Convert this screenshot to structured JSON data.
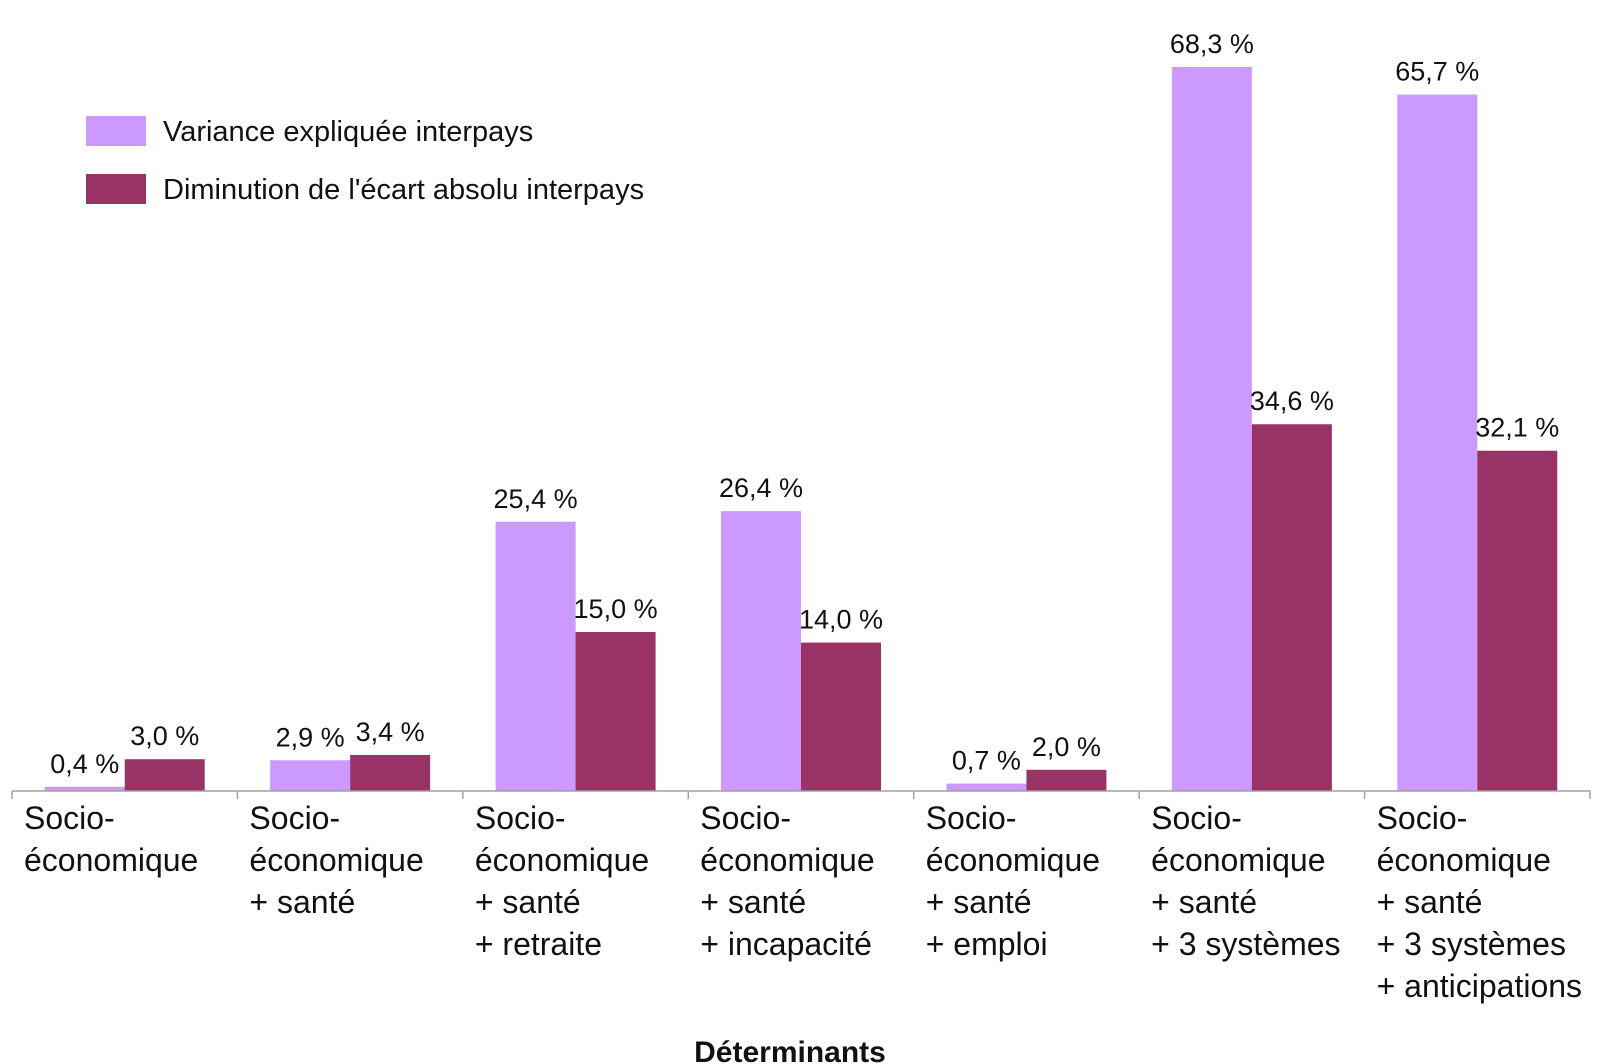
{
  "chart_data": {
    "type": "bar",
    "xlabel": "Déterminants",
    "ylabel": "",
    "ylim": [
      0,
      72
    ],
    "grid": false,
    "legend_position": "top-left",
    "categories": [
      [
        "Socio-",
        "économique"
      ],
      [
        "Socio-",
        "économique",
        "+ santé"
      ],
      [
        "Socio-",
        "économique",
        "+ santé",
        "+ retraite"
      ],
      [
        "Socio-",
        "économique",
        "+ santé",
        "+ incapacité"
      ],
      [
        "Socio-",
        "économique",
        "+ santé",
        "+ emploi"
      ],
      [
        "Socio-",
        "économique",
        "+ santé",
        "+ 3 systèmes"
      ],
      [
        "Socio-",
        "économique",
        "+ santé",
        "+ 3 systèmes",
        "+ anticipations"
      ]
    ],
    "series": [
      {
        "name": "Variance expliquée interpays",
        "color": "#cc99ff",
        "values": [
          0.4,
          2.9,
          25.4,
          26.4,
          0.7,
          68.3,
          65.7
        ],
        "labels": [
          "0,4 %",
          "2,9 %",
          "25,4 %",
          "26,4 %",
          "0,7 %",
          "68,3 %",
          "65,7 %"
        ]
      },
      {
        "name": "Diminution de l'écart absolu interpays",
        "color": "#993366",
        "values": [
          3.0,
          3.4,
          15.0,
          14.0,
          2.0,
          34.6,
          32.1
        ],
        "labels": [
          "3,0 %",
          "3,4 %",
          "15,0 %",
          "14,0 %",
          "2,0 %",
          "34,6 %",
          "32,1 %"
        ]
      }
    ]
  }
}
